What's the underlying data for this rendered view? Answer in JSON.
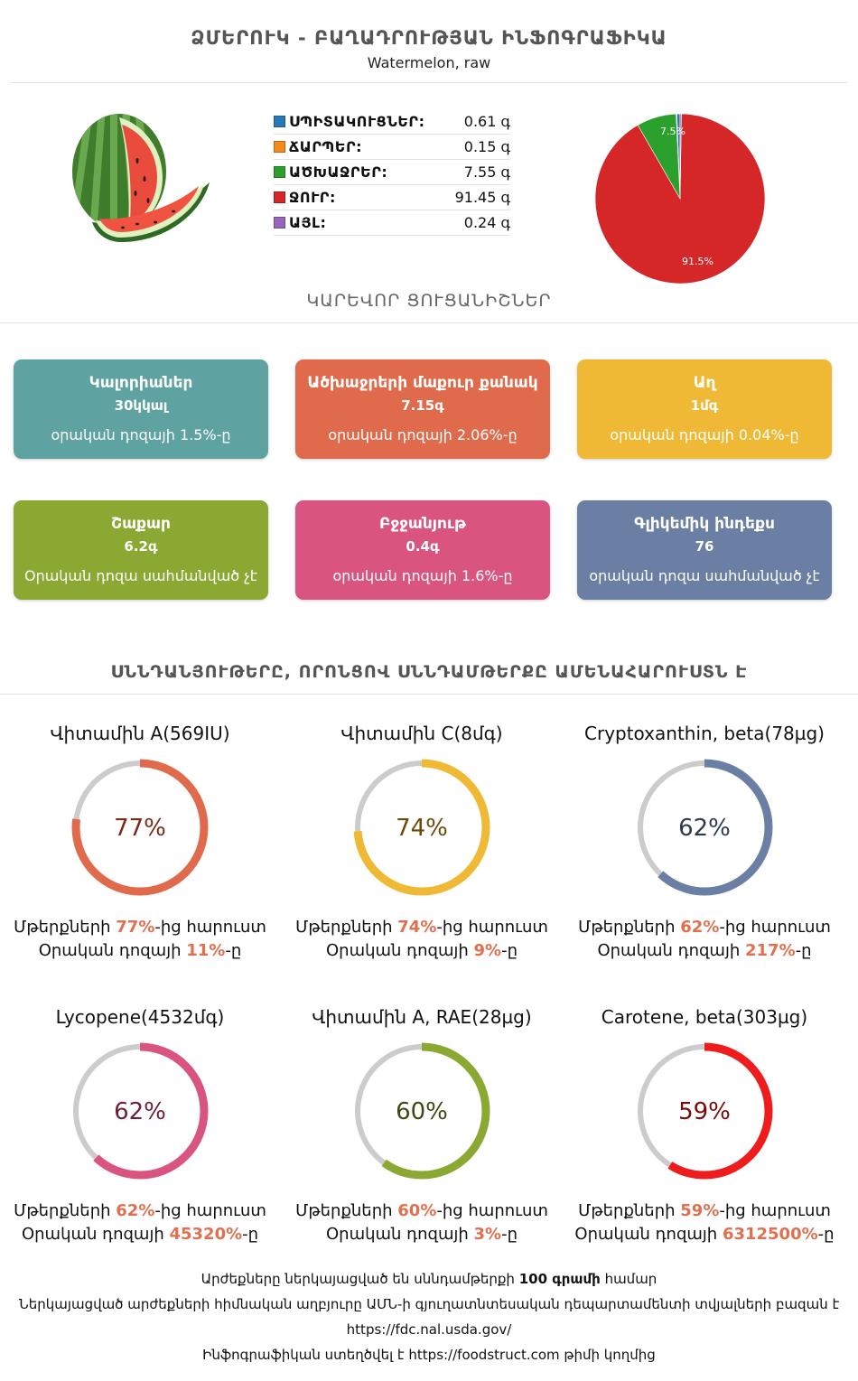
{
  "header": {
    "title": "ՁՄԵՐՈՒԿ - ԲԱՂԱԴՐՈՒԹՅԱՆ ԻՆՖՈԳՐԱՖԻԿԱ",
    "subtitle": "Watermelon, raw"
  },
  "composition": {
    "rows": [
      {
        "label": "ՍՊԻՏԱԿՈՒՑՆԵՐ:",
        "value": "0.61 գ",
        "color": "#2878b8"
      },
      {
        "label": "ՃԱՐՊԵՐ:",
        "value": "0.15 գ",
        "color": "#f28a1e"
      },
      {
        "label": "ԱԾԽԱՋՐԵՐ:",
        "value": "7.55 գ",
        "color": "#2ca02c"
      },
      {
        "label": "ՋՈՒՐ:",
        "value": "91.45 գ",
        "color": "#d62728"
      },
      {
        "label": "ԱՅԼ:",
        "value": "0.24 գ",
        "color": "#9467bd"
      }
    ]
  },
  "pie": {
    "slices": [
      {
        "value": 0.61,
        "color": "#2878b8"
      },
      {
        "value": 0.15,
        "color": "#f28a1e"
      },
      {
        "value": 7.55,
        "color": "#2ca02c"
      },
      {
        "value": 91.45,
        "color": "#d62728"
      },
      {
        "value": 0.24,
        "color": "#9467bd"
      }
    ],
    "label_carbs": "7.5%",
    "label_water": "91.5%"
  },
  "key_facts": {
    "title": "ԿԱՐԵՎՈՐ ՑՈՒՑԱՆԻՇՆԵՐ",
    "cards": [
      {
        "title": "Կալորիաներ",
        "value": "30կկալ",
        "sub": "օրական դոզայի 1.5%-ը",
        "color": "#5ea3a1"
      },
      {
        "title": "Ածխաջրերի մաքուր քանակ",
        "value": "7.15գ",
        "sub": "օրական դոզայի 2.06%-ը",
        "color": "#e06b4c"
      },
      {
        "title": "Աղ",
        "value": "1մգ",
        "sub": "օրական դոզայի 0.04%-ը",
        "color": "#f0b935"
      },
      {
        "title": "Շաքար",
        "value": "6.2գ",
        "sub": "Օրական դոզա սահմանված չէ",
        "color": "#8aa832"
      },
      {
        "title": "Բջջանյութ",
        "value": "0.4գ",
        "sub": "օրական դոզայի 1.6%-ը",
        "color": "#d9547f"
      },
      {
        "title": "Գլիկեմիկ ինդեքս",
        "value": "76",
        "sub": "օրական դոզա սահմանված չէ",
        "color": "#6a7fa3"
      }
    ]
  },
  "nutrients": {
    "title": "ՍՆՆԴԱՆՅՈՒԹԵՐԸ, ՈՐՈՆՑՈՎ ՍՆՆԴԱՄԹԵՐՔԸ ԱՄԵՆԱՀԱՐՈՒՍՏՆ Է",
    "prefix_rich": "Մթերքների ",
    "suffix_rich": "-ից հարուստ",
    "prefix_daily": "Օրական դոզայի ",
    "suffix_daily": "-ը",
    "items": [
      {
        "name": "Վիտամին A(569IU)",
        "pct": 77,
        "pct_label": "77%",
        "daily": "11%",
        "color": "#e06b4c",
        "text_color": "#7a2a18"
      },
      {
        "name": "Վիտամին C(8մգ)",
        "pct": 74,
        "pct_label": "74%",
        "daily": "9%",
        "color": "#f0b935",
        "text_color": "#6b4a06"
      },
      {
        "name": "Cryptoxanthin, beta(78µg)",
        "pct": 62,
        "pct_label": "62%",
        "daily": "217%",
        "color": "#6a7fa3",
        "text_color": "#2c3a52"
      },
      {
        "name": "Lycopene(4532մգ)",
        "pct": 62,
        "pct_label": "62%",
        "daily": "45320%",
        "color": "#d9547f",
        "text_color": "#6e1e3a"
      },
      {
        "name": "Վիտամին A, RAE(28µg)",
        "pct": 60,
        "pct_label": "60%",
        "daily": "3%",
        "color": "#8aa832",
        "text_color": "#3a4a10"
      },
      {
        "name": "Carotene, beta(303µg)",
        "pct": 59,
        "pct_label": "59%",
        "daily": "6312500%",
        "color": "#ee1c1c",
        "text_color": "#7a0a0a"
      }
    ]
  },
  "footer": {
    "line1_pre": "Արժեքները ներկայացված են սննդամթերքի ",
    "line1_bold": "100 գրամի",
    "line1_post": " համար",
    "line2": "Ներկայացված արժեքների հիմնական աղբյուրը ԱՄՆ-ի գյուղատնտեսական դեպարտամենտի տվյալների բազան է",
    "line3": "https://fdc.nal.usda.gov/",
    "line4": "Ինֆոգրաֆիկան ստեղծվել է https://foodstruct.com թիմի կողմից"
  }
}
